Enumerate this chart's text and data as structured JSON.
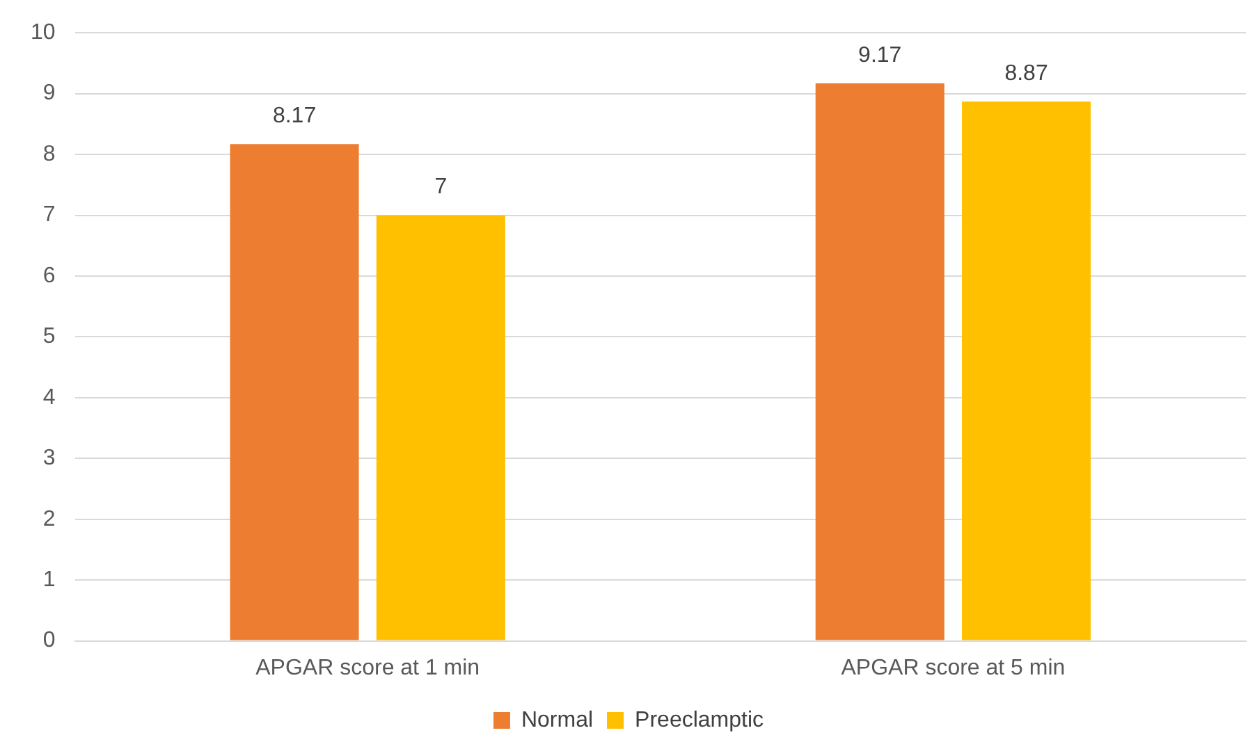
{
  "chart_data": {
    "type": "bar",
    "categories": [
      "APGAR score at 1 min",
      "APGAR score at 5 min"
    ],
    "series": [
      {
        "name": "Normal",
        "color": "#ed7d31",
        "values": [
          8.17,
          9.17
        ]
      },
      {
        "name": "Preeclamptic",
        "color": "#ffc000",
        "values": [
          7,
          8.87
        ]
      }
    ],
    "ylim": [
      0,
      10
    ],
    "yticks": [
      0,
      1,
      2,
      3,
      4,
      5,
      6,
      7,
      8,
      9,
      10
    ],
    "grid": "y",
    "legend": "bottom",
    "data_labels": true
  }
}
